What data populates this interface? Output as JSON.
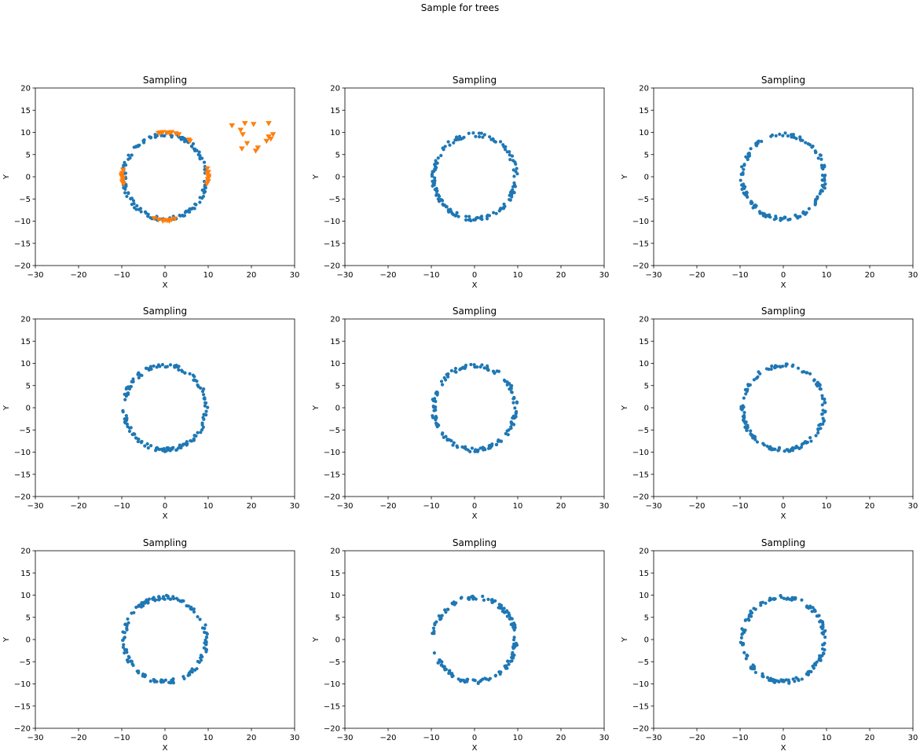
{
  "figure": {
    "suptitle": "Sample for trees",
    "colors": {
      "circle": "#1f77b4",
      "sampled": "#ff7f0e"
    }
  },
  "chart_data": [
    {
      "type": "scatter",
      "title": "Sampling",
      "xlabel": "X",
      "ylabel": "Y",
      "xlim": [
        -30,
        30
      ],
      "ylim": [
        -20,
        20
      ],
      "xticks": [
        -30,
        -20,
        -10,
        0,
        10,
        20,
        30
      ],
      "yticks": [
        -20,
        -15,
        -10,
        -5,
        0,
        5,
        10,
        15,
        20
      ],
      "grid": false,
      "series": [
        {
          "marker": "circle",
          "color": "#1f77b4",
          "radius_approx": 9.5,
          "center": [
            0,
            0
          ],
          "n_points_approx": 150
        },
        {
          "marker": "triangle-down",
          "color": "#ff7f0e",
          "points": [
            [
              -9.7,
              1.5
            ],
            [
              -9.9,
              0.8
            ],
            [
              -10.0,
              0.0
            ],
            [
              -9.8,
              -0.8
            ],
            [
              -9.6,
              -1.6
            ],
            [
              -9.9,
              -1.2
            ],
            [
              -10.1,
              0.4
            ],
            [
              -9.7,
              -0.3
            ],
            [
              9.8,
              1.8
            ],
            [
              10.0,
              1.0
            ],
            [
              10.1,
              0.2
            ],
            [
              9.9,
              -0.6
            ],
            [
              9.7,
              -1.6
            ],
            [
              10.0,
              -1.1
            ],
            [
              9.8,
              0.6
            ],
            [
              10.1,
              -0.2
            ],
            [
              -1.5,
              9.8
            ],
            [
              -0.5,
              10.0
            ],
            [
              0.5,
              9.9
            ],
            [
              1.5,
              10.0
            ],
            [
              2.5,
              9.7
            ],
            [
              3.2,
              9.5
            ],
            [
              -1.0,
              9.9
            ],
            [
              1.0,
              9.8
            ],
            [
              5.5,
              8.3
            ],
            [
              5.8,
              8.0
            ],
            [
              -2.5,
              -9.4
            ],
            [
              -1.5,
              -9.7
            ],
            [
              -0.5,
              -10.0
            ],
            [
              0.5,
              -9.9
            ],
            [
              1.5,
              -9.7
            ],
            [
              2.3,
              -9.5
            ],
            [
              0.0,
              -9.8
            ],
            [
              1.0,
              -10.0
            ],
            [
              15.5,
              11.5
            ],
            [
              17.5,
              10.5
            ],
            [
              18.5,
              12.0
            ],
            [
              20.5,
              11.8
            ],
            [
              18.0,
              9.5
            ],
            [
              19.0,
              7.5
            ],
            [
              17.8,
              6.3
            ],
            [
              21.5,
              6.5
            ],
            [
              21.0,
              5.8
            ],
            [
              23.5,
              8.0
            ],
            [
              24.0,
              9.0
            ],
            [
              24.5,
              8.5
            ],
            [
              25.0,
              9.5
            ],
            [
              24.0,
              12.0
            ]
          ]
        }
      ]
    },
    {
      "type": "scatter",
      "title": "Sampling",
      "xlabel": "X",
      "ylabel": "Y",
      "xlim": [
        -30,
        30
      ],
      "ylim": [
        -20,
        20
      ],
      "xticks": [
        -30,
        -20,
        -10,
        0,
        10,
        20,
        30
      ],
      "yticks": [
        -20,
        -15,
        -10,
        -5,
        0,
        5,
        10,
        15,
        20
      ],
      "grid": false,
      "series": [
        {
          "marker": "circle",
          "color": "#1f77b4",
          "radius_approx": 9.5,
          "center": [
            0,
            0
          ],
          "n_points_approx": 150
        }
      ]
    },
    {
      "type": "scatter",
      "title": "Sampling",
      "xlabel": "X",
      "ylabel": "Y",
      "xlim": [
        -30,
        30
      ],
      "ylim": [
        -20,
        20
      ],
      "xticks": [
        -30,
        -20,
        -10,
        0,
        10,
        20,
        30
      ],
      "yticks": [
        -20,
        -15,
        -10,
        -5,
        0,
        5,
        10,
        15,
        20
      ],
      "grid": false,
      "series": [
        {
          "marker": "circle",
          "color": "#1f77b4",
          "radius_approx": 9.5,
          "center": [
            0,
            0
          ],
          "n_points_approx": 150
        }
      ]
    },
    {
      "type": "scatter",
      "title": "Sampling",
      "xlabel": "X",
      "ylabel": "Y",
      "xlim": [
        -30,
        30
      ],
      "ylim": [
        -20,
        20
      ],
      "xticks": [
        -30,
        -20,
        -10,
        0,
        10,
        20,
        30
      ],
      "yticks": [
        -20,
        -15,
        -10,
        -5,
        0,
        5,
        10,
        15,
        20
      ],
      "grid": false,
      "series": [
        {
          "marker": "circle",
          "color": "#1f77b4",
          "radius_approx": 9.5,
          "center": [
            0,
            0
          ],
          "n_points_approx": 150
        }
      ]
    },
    {
      "type": "scatter",
      "title": "Sampling",
      "xlabel": "X",
      "ylabel": "Y",
      "xlim": [
        -30,
        30
      ],
      "ylim": [
        -20,
        20
      ],
      "xticks": [
        -30,
        -20,
        -10,
        0,
        10,
        20,
        30
      ],
      "yticks": [
        -20,
        -15,
        -10,
        -5,
        0,
        5,
        10,
        15,
        20
      ],
      "grid": false,
      "series": [
        {
          "marker": "circle",
          "color": "#1f77b4",
          "radius_approx": 9.5,
          "center": [
            0,
            0
          ],
          "n_points_approx": 150
        }
      ]
    },
    {
      "type": "scatter",
      "title": "Sampling",
      "xlabel": "X",
      "ylabel": "Y",
      "xlim": [
        -30,
        30
      ],
      "ylim": [
        -20,
        20
      ],
      "xticks": [
        -30,
        -20,
        -10,
        0,
        10,
        20,
        30
      ],
      "yticks": [
        -20,
        -15,
        -10,
        -5,
        0,
        5,
        10,
        15,
        20
      ],
      "grid": false,
      "series": [
        {
          "marker": "circle",
          "color": "#1f77b4",
          "radius_approx": 9.5,
          "center": [
            0,
            0
          ],
          "n_points_approx": 150
        }
      ]
    },
    {
      "type": "scatter",
      "title": "Sampling",
      "xlabel": "X",
      "ylabel": "Y",
      "xlim": [
        -30,
        30
      ],
      "ylim": [
        -20,
        20
      ],
      "xticks": [
        -30,
        -20,
        -10,
        0,
        10,
        20,
        30
      ],
      "yticks": [
        -20,
        -15,
        -10,
        -5,
        0,
        5,
        10,
        15,
        20
      ],
      "grid": false,
      "series": [
        {
          "marker": "circle",
          "color": "#1f77b4",
          "radius_approx": 9.5,
          "center": [
            0,
            0
          ],
          "n_points_approx": 150
        }
      ]
    },
    {
      "type": "scatter",
      "title": "Sampling",
      "xlabel": "X",
      "ylabel": "Y",
      "xlim": [
        -30,
        30
      ],
      "ylim": [
        -20,
        20
      ],
      "xticks": [
        -30,
        -20,
        -10,
        0,
        10,
        20,
        30
      ],
      "yticks": [
        -20,
        -15,
        -10,
        -5,
        0,
        5,
        10,
        15,
        20
      ],
      "grid": false,
      "series": [
        {
          "marker": "circle",
          "color": "#1f77b4",
          "radius_approx": 9.5,
          "center": [
            0,
            0
          ],
          "n_points_approx": 150
        }
      ]
    },
    {
      "type": "scatter",
      "title": "Sampling",
      "xlabel": "X",
      "ylabel": "Y",
      "xlim": [
        -30,
        30
      ],
      "ylim": [
        -20,
        20
      ],
      "xticks": [
        -30,
        -20,
        -10,
        0,
        10,
        20,
        30
      ],
      "yticks": [
        -20,
        -15,
        -10,
        -5,
        0,
        5,
        10,
        15,
        20
      ],
      "grid": false,
      "series": [
        {
          "marker": "circle",
          "color": "#1f77b4",
          "radius_approx": 9.5,
          "center": [
            0,
            0
          ],
          "n_points_approx": 150
        }
      ]
    }
  ]
}
